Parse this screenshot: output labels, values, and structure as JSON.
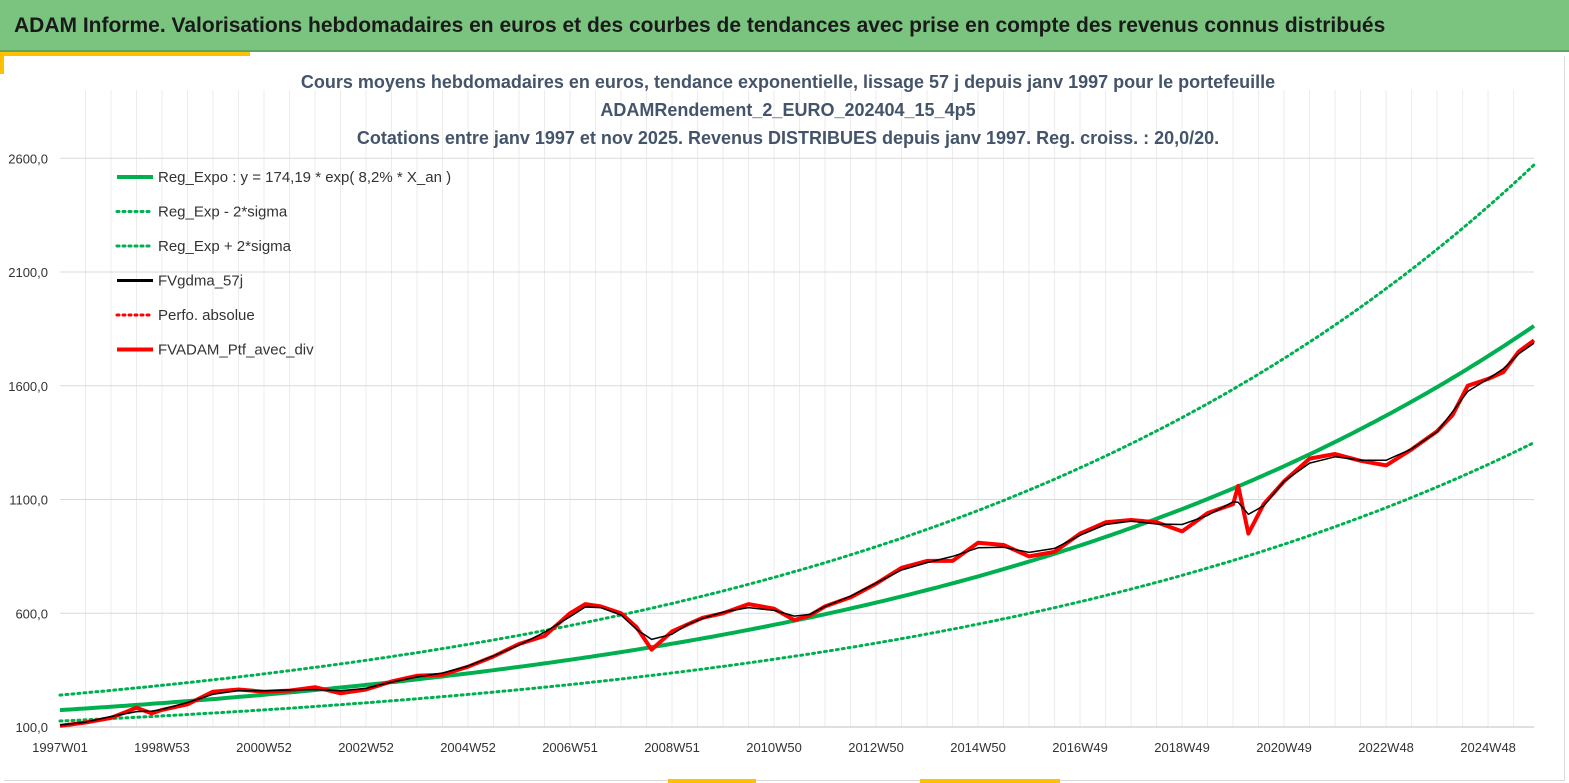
{
  "banner": {
    "title": "ADAM Informe. Valorisations hebdomadaires en euros et des courbes de tendances avec prise en compte des revenus connus distribués"
  },
  "colors": {
    "banner_bg": "#7ac47f",
    "accent": "#ffc000",
    "reg_expo": "#00b050",
    "gdma": "#000000",
    "portfolio": "#ff0000"
  },
  "chart_data": {
    "type": "line",
    "title_lines": [
      "Cours moyens hebdomadaires  en euros, tendance exponentielle, lissage 57 j depuis janv 1997 pour le portefeuille",
      "ADAMRendement_2_EURO_202404_15_4p5",
      "Cotations  entre janv 1997 et nov 2025. Revenus DISTRIBUES depuis janv 1997. Reg. croiss. : 20,0/20."
    ],
    "x_range": [
      1997.0,
      2025.9
    ],
    "ylim": [
      100,
      2900
    ],
    "y_ticks": [
      100,
      600,
      1100,
      1600,
      2100,
      2600
    ],
    "y_tick_labels": [
      "100,0",
      "600,0",
      "1100,0",
      "1600,0",
      "2100,0",
      "2600,0"
    ],
    "x_ticks": [
      1997.0,
      1999.0,
      2001.0,
      2003.0,
      2005.0,
      2007.0,
      2009.0,
      2011.0,
      2013.0,
      2015.0,
      2017.0,
      2019.0,
      2021.0,
      2023.0,
      2025.0
    ],
    "x_tick_labels": [
      "1997W01",
      "1998W53",
      "2000W52",
      "2002W52",
      "2004W52",
      "2006W51",
      "2008W51",
      "2010W50",
      "2012W50",
      "2014W50",
      "2016W49",
      "2018W49",
      "2020W49",
      "2022W48",
      "2024W48"
    ],
    "regression": {
      "a": 174.19,
      "rate": 0.082,
      "sigma_factor": 1.38,
      "start_year": 1997
    },
    "legend": [
      {
        "label": "Reg_Expo : y = 174,19 * exp( 8,2% *  X_an )",
        "color": "#00b050",
        "style": "solid",
        "width": 4
      },
      {
        "label": "Reg_Exp - 2*sigma",
        "color": "#00b050",
        "style": "dotted",
        "width": 3
      },
      {
        "label": "Reg_Exp + 2*sigma",
        "color": "#00b050",
        "style": "dotted",
        "width": 3
      },
      {
        "label": "FVgdma_57j",
        "color": "#000000",
        "style": "solid",
        "width": 3
      },
      {
        "label": "Perfo. absolue",
        "color": "#ff0000",
        "style": "dotted",
        "width": 3
      },
      {
        "label": "FVADAM_Ptf_avec_div",
        "color": "#ff0000",
        "style": "solid",
        "width": 4
      }
    ],
    "series": [
      {
        "name": "FVADAM_Ptf_avec_div",
        "x": [
          1997.0,
          1997.5,
          1998.0,
          1998.5,
          1998.8,
          1999.0,
          1999.5,
          2000.0,
          2000.5,
          2001.0,
          2001.5,
          2002.0,
          2002.5,
          2003.0,
          2003.5,
          2004.0,
          2004.5,
          2005.0,
          2005.5,
          2006.0,
          2006.5,
          2007.0,
          2007.3,
          2007.6,
          2008.0,
          2008.3,
          2008.6,
          2009.0,
          2009.3,
          2009.6,
          2010.0,
          2010.5,
          2011.0,
          2011.4,
          2011.7,
          2012.0,
          2012.5,
          2013.0,
          2013.5,
          2014.0,
          2014.5,
          2015.0,
          2015.5,
          2016.0,
          2016.5,
          2017.0,
          2017.5,
          2018.0,
          2018.5,
          2019.0,
          2019.5,
          2020.0,
          2020.1,
          2020.3,
          2020.6,
          2021.0,
          2021.5,
          2022.0,
          2022.5,
          2023.0,
          2023.5,
          2024.0,
          2024.3,
          2024.6,
          2025.0,
          2025.3,
          2025.6,
          2025.9
        ],
        "values": [
          105,
          120,
          140,
          185,
          160,
          175,
          200,
          255,
          265,
          255,
          260,
          275,
          248,
          265,
          300,
          325,
          330,
          365,
          410,
          465,
          500,
          600,
          640,
          630,
          600,
          540,
          440,
          520,
          550,
          580,
          600,
          640,
          620,
          570,
          590,
          630,
          670,
          730,
          800,
          830,
          830,
          910,
          900,
          850,
          870,
          950,
          1000,
          1010,
          1000,
          960,
          1040,
          1080,
          1160,
          950,
          1080,
          1180,
          1280,
          1300,
          1270,
          1250,
          1320,
          1400,
          1470,
          1600,
          1630,
          1660,
          1750,
          1800
        ]
      }
    ],
    "footer_marks": [
      {
        "name": "bottom-mark-1"
      },
      {
        "name": "bottom-mark-2"
      }
    ]
  }
}
